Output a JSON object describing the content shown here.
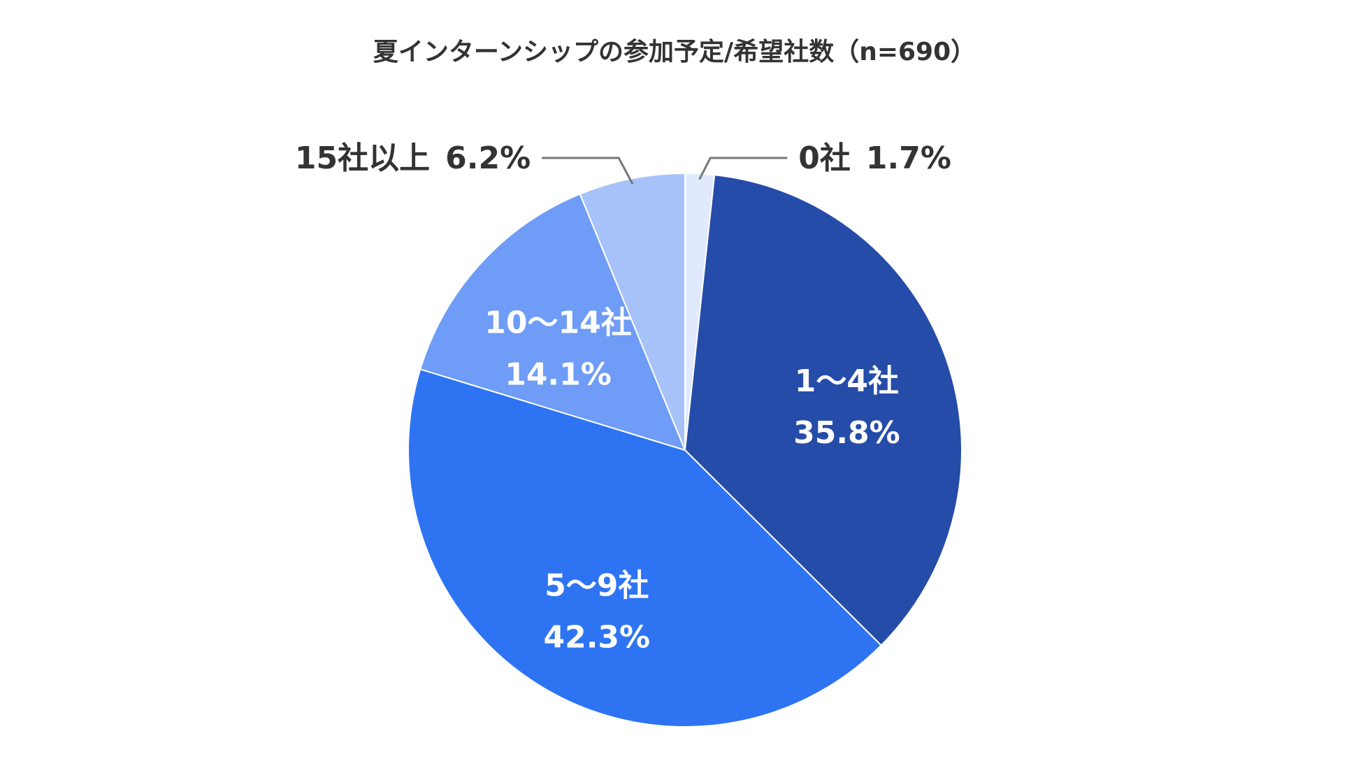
{
  "chart_data": {
    "type": "pie",
    "title": "夏インターンシップの参加予定/希望社数（n=690）",
    "slices": [
      {
        "label": "0社",
        "value": 1.7,
        "value_label": "1.7%",
        "color": "#e0e9fd",
        "label_style": "outside-right"
      },
      {
        "label": "1〜4社",
        "value": 35.8,
        "value_label": "35.8%",
        "color": "#254ca8",
        "label_style": "inside"
      },
      {
        "label": "5〜9社",
        "value": 42.3,
        "value_label": "42.3%",
        "color": "#2e74f2",
        "label_style": "inside"
      },
      {
        "label": "10〜14社",
        "value": 14.1,
        "value_label": "14.1%",
        "color": "#6e9cf6",
        "label_style": "inside"
      },
      {
        "label": "15社以上",
        "value": 6.2,
        "value_label": "6.2%",
        "color": "#a7c2f8",
        "label_style": "outside-left"
      }
    ],
    "start_angle": "12 o'clock",
    "direction": "clockwise",
    "legend": "none"
  }
}
